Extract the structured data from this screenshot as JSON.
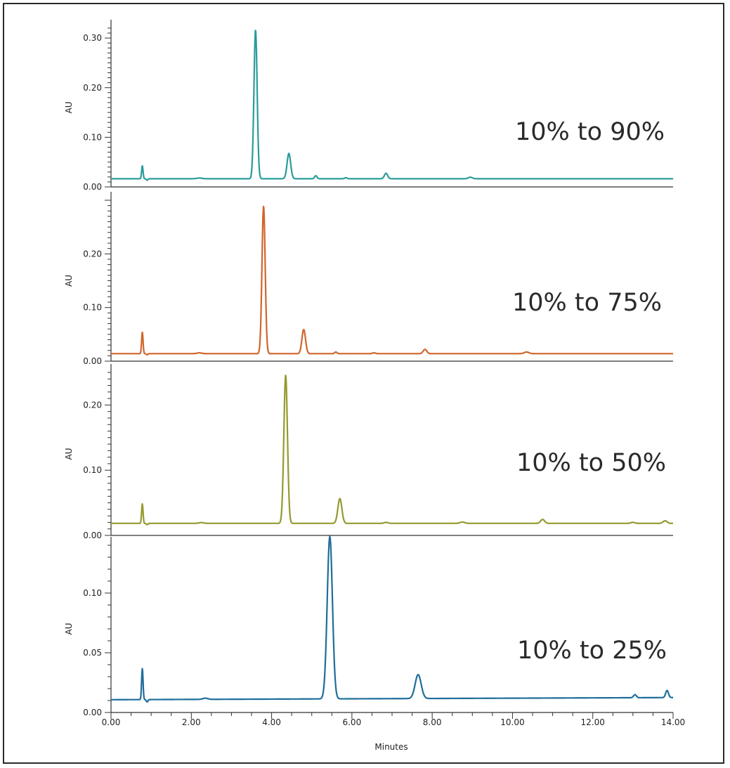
{
  "chart_data": [
    {
      "type": "line",
      "label": "10% to 90%",
      "ylabel": "AU",
      "ylim": [
        0,
        0.32
      ],
      "yticks": [
        "0.00",
        "0.10",
        "0.20",
        "0.30"
      ],
      "color": "#2a9d9a",
      "baseline": 0.0165,
      "peaks": [
        [
          0.78,
          0.026,
          0.018
        ],
        [
          0.9,
          -0.003,
          0.02
        ],
        [
          2.2,
          0.0015,
          0.06
        ],
        [
          3.6,
          0.3,
          0.04
        ],
        [
          4.43,
          0.051,
          0.045
        ],
        [
          5.1,
          0.006,
          0.03
        ],
        [
          5.85,
          0.002,
          0.03
        ],
        [
          6.85,
          0.011,
          0.04
        ],
        [
          8.95,
          0.003,
          0.05
        ]
      ]
    },
    {
      "type": "line",
      "label": "10% to 75%",
      "ylabel": "AU",
      "ylim": [
        0,
        0.3
      ],
      "yticks": [
        "0.00",
        "0.10",
        "0.20"
      ],
      "color": "#d1652b",
      "baseline": 0.014,
      "peaks": [
        [
          0.78,
          0.04,
          0.018
        ],
        [
          0.9,
          -0.002,
          0.02
        ],
        [
          2.2,
          0.0015,
          0.06
        ],
        [
          3.8,
          0.275,
          0.04
        ],
        [
          4.8,
          0.045,
          0.045
        ],
        [
          5.6,
          0.003,
          0.03
        ],
        [
          6.55,
          0.0015,
          0.04
        ],
        [
          7.82,
          0.008,
          0.045
        ],
        [
          10.35,
          0.003,
          0.06
        ]
      ]
    },
    {
      "type": "line",
      "label": "10% to 50%",
      "ylabel": "AU",
      "ylim": [
        0,
        0.25
      ],
      "yticks": [
        "0.00",
        "0.10",
        "0.20"
      ],
      "color": "#949a2e",
      "baseline": 0.0185,
      "peaks": [
        [
          0.78,
          0.03,
          0.018
        ],
        [
          0.9,
          -0.002,
          0.02
        ],
        [
          2.25,
          0.0012,
          0.06
        ],
        [
          4.35,
          0.227,
          0.045
        ],
        [
          5.7,
          0.038,
          0.05
        ],
        [
          6.85,
          0.0015,
          0.05
        ],
        [
          8.75,
          0.002,
          0.06
        ],
        [
          10.75,
          0.006,
          0.05
        ],
        [
          13.0,
          0.0015,
          0.05
        ],
        [
          13.8,
          0.004,
          0.05
        ]
      ]
    },
    {
      "type": "line",
      "label": "10% to 25%",
      "ylabel": "AU",
      "xlabel": "Minutes",
      "ylim": [
        0,
        0.14
      ],
      "yticks": [
        "0.00",
        "0.05",
        "0.10"
      ],
      "xlim": [
        0,
        14
      ],
      "xticks": [
        "0.00",
        "2.00",
        "4.00",
        "6.00",
        "8.00",
        "10.00",
        "12.00",
        "14.00"
      ],
      "color": "#1f6d9b",
      "baseline": 0.0107,
      "baseline_end": 0.0125,
      "peaks": [
        [
          0.78,
          0.026,
          0.018
        ],
        [
          0.9,
          -0.002,
          0.02
        ],
        [
          2.35,
          0.001,
          0.06
        ],
        [
          5.45,
          0.136,
          0.065
        ],
        [
          7.65,
          0.02,
          0.075
        ],
        [
          13.05,
          0.0025,
          0.035
        ],
        [
          13.85,
          0.006,
          0.035
        ]
      ]
    }
  ]
}
